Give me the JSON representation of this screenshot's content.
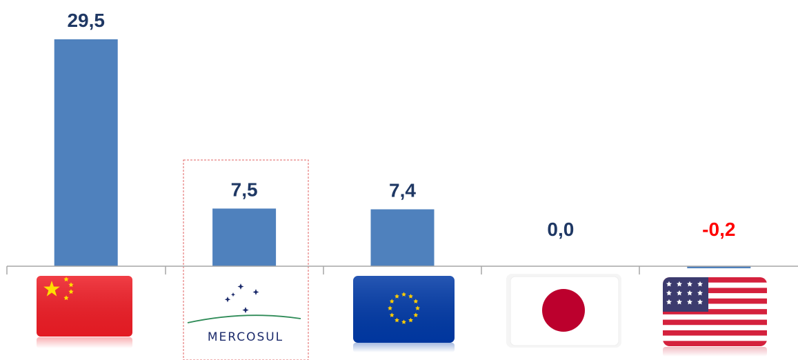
{
  "chart_data": {
    "type": "bar",
    "categories": [
      "China",
      "Mercosul",
      "União Europeia",
      "Japão",
      "Estados Unidos"
    ],
    "values": [
      29.5,
      7.5,
      7.4,
      0.0,
      -0.2
    ],
    "value_labels": [
      "29,5",
      "7,5",
      "7,4",
      "0,0",
      "-0,2"
    ],
    "bar_color": "#4f81bd",
    "label_color": "#1f3864",
    "negative_label_color": "#ff0000",
    "ylim": [
      -0.2,
      29.5
    ],
    "grid": false,
    "highlighted_category": "Mercosul"
  },
  "flags": {
    "china": "china-flag-icon",
    "mercosul": "mercosul-logo",
    "mercosul_text": "MERCOSUL",
    "eu": "eu-flag-icon",
    "japan": "japan-flag-icon",
    "usa": "usa-flag-icon"
  },
  "colors": {
    "china_red": "#ee1c25",
    "china_star": "#ffde00",
    "eu_blue": "#0039a6",
    "eu_star": "#ffcc00",
    "japan_red": "#bc002d",
    "usa_red": "#d4213d",
    "usa_blue": "#3c3b6e",
    "mercosul_navy": "#1b2a6b",
    "mercosul_green": "#2e8b57",
    "highlight_box": "#e06060"
  }
}
